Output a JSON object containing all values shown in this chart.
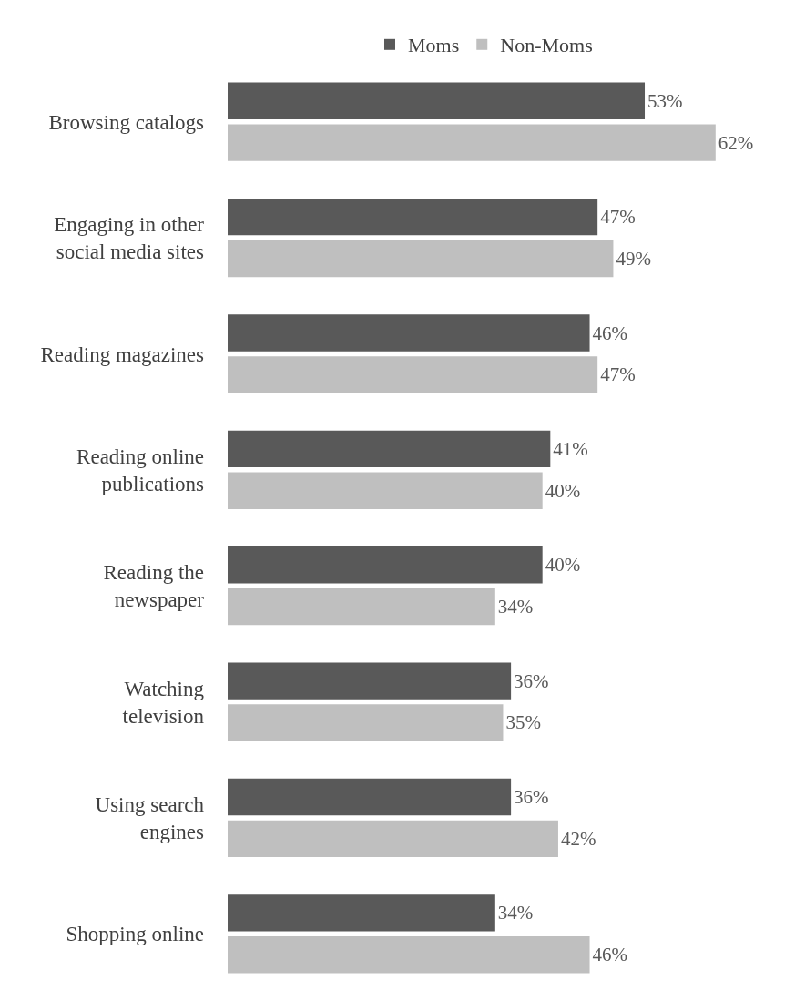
{
  "chart_data": {
    "type": "bar",
    "orientation": "horizontal",
    "categories": [
      "Browsing catalogs",
      "Engaging in other\nsocial media sites",
      "Reading magazines",
      "Reading online\npublications",
      "Reading the\nnewspaper",
      "Watching\ntelevision",
      "Using search\nengines",
      "Shopping online"
    ],
    "series": [
      {
        "name": "Moms",
        "color": "#595959",
        "values": [
          53,
          47,
          46,
          41,
          40,
          36,
          36,
          34
        ],
        "value_labels": [
          "53%",
          "47%",
          "46%",
          "41%",
          "40%",
          "36%",
          "36%",
          "34%"
        ]
      },
      {
        "name": "Non-Moms",
        "color": "#bfbfbf",
        "values": [
          62,
          49,
          47,
          40,
          34,
          35,
          42,
          46
        ],
        "value_labels": [
          "62%",
          "49%",
          "47%",
          "40%",
          "34%",
          "35%",
          "42%",
          "46%"
        ]
      }
    ],
    "legend": "top",
    "grid": false,
    "tick_labels": "y"
  }
}
